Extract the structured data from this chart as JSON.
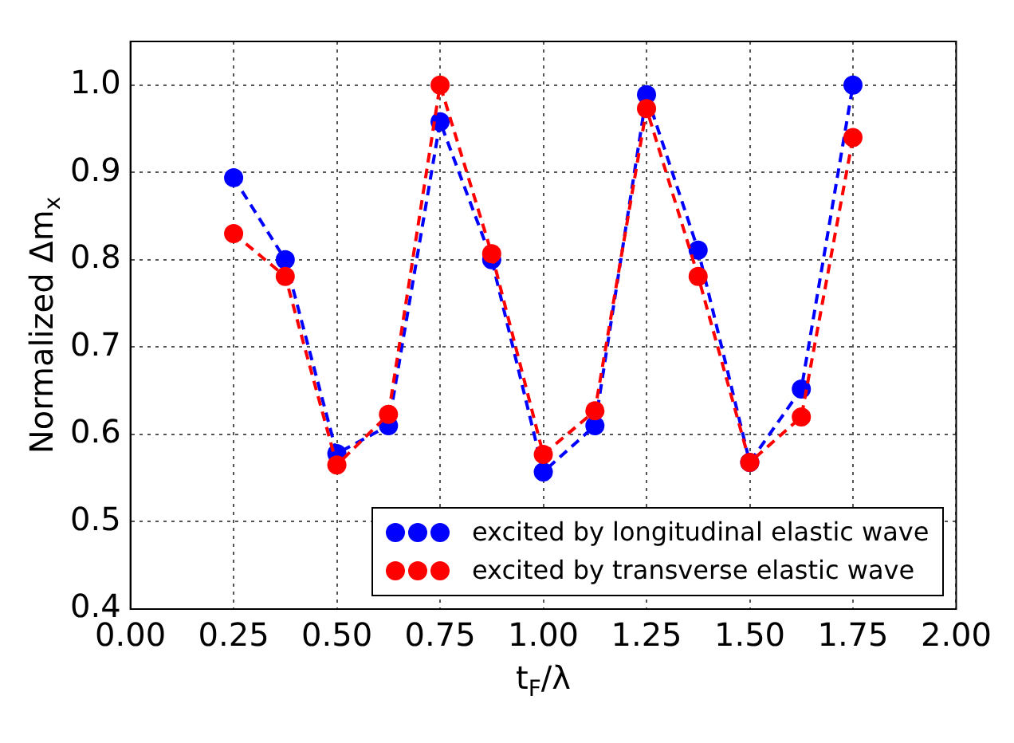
{
  "chart_data": {
    "type": "line",
    "xlabel": "t$_{F}$/λ",
    "ylabel": "Normalized Δm$_{x}$",
    "x": [
      0.25,
      0.375,
      0.5,
      0.625,
      0.75,
      0.875,
      1.0,
      1.125,
      1.25,
      1.375,
      1.5,
      1.625,
      1.75
    ],
    "series": [
      {
        "name": "excited by longitudinal elastic wave",
        "color": "#0000ff",
        "values": [
          0.894,
          0.8,
          0.578,
          0.61,
          0.958,
          0.8,
          0.557,
          0.61,
          0.989,
          0.811,
          0.568,
          0.652,
          1.0
        ]
      },
      {
        "name": "excited by transverse elastic wave",
        "color": "#ff0000",
        "values": [
          0.83,
          0.781,
          0.565,
          0.623,
          1.0,
          0.807,
          0.577,
          0.627,
          0.973,
          0.781,
          0.568,
          0.62,
          0.94
        ]
      }
    ],
    "xlim": [
      0,
      2
    ],
    "xticks": [
      {
        "value": 0,
        "label": "0.00"
      },
      0.25,
      {
        "value": 0.5,
        "label": "0.50"
      },
      0.75,
      {
        "value": 1,
        "label": "1.00"
      },
      1.25,
      {
        "value": 1.5,
        "label": "1.50"
      },
      1.75,
      {
        "value": 2,
        "label": "2.00"
      }
    ],
    "ylim": [
      0.4,
      1.05
    ],
    "yticks": [
      0.4,
      0.5,
      0.6,
      0.7,
      0.8,
      0.9,
      {
        "value": 1,
        "label": "1.0"
      }
    ],
    "grid": true,
    "legend": "bottom right",
    "marker": "circle",
    "line_style": "dashed"
  }
}
